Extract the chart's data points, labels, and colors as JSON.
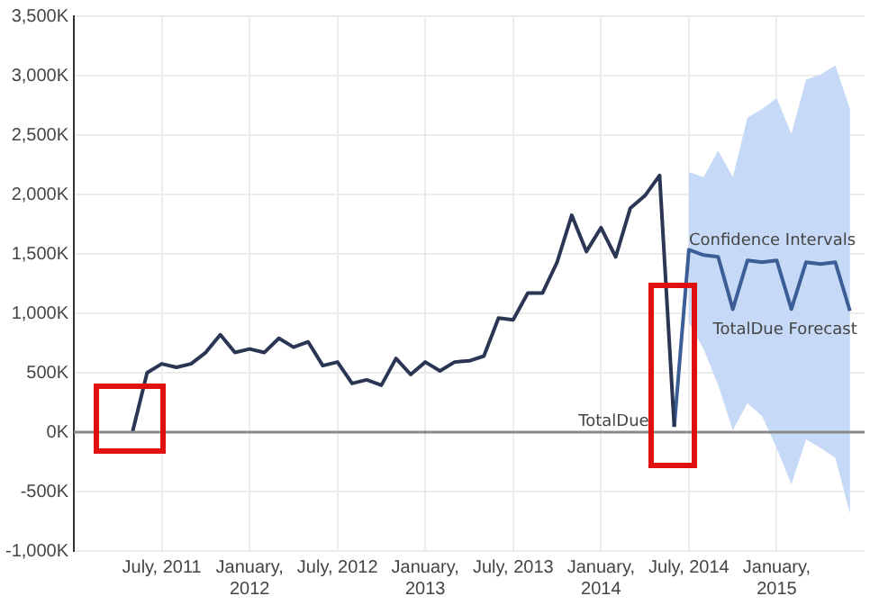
{
  "chart_data": {
    "type": "line",
    "marker": "none",
    "legend": false,
    "grid": true,
    "xlim": [
      "2011-01",
      "2015-07"
    ],
    "xticks": [
      {
        "value": "2011-07",
        "label": "July, 2011"
      },
      {
        "value": "2012-01",
        "label": "January, 2012"
      },
      {
        "value": "2012-07",
        "label": "July, 2012"
      },
      {
        "value": "2013-01",
        "label": "January, 2013"
      },
      {
        "value": "2013-07",
        "label": "July, 2013"
      },
      {
        "value": "2014-01",
        "label": "January, 2014"
      },
      {
        "value": "2014-07",
        "label": "July, 2014"
      },
      {
        "value": "2015-01",
        "label": "January, 2015"
      }
    ],
    "ylim": [
      -1000,
      3500
    ],
    "yticks": [
      {
        "value": -1000,
        "label": "-1,000K"
      },
      {
        "value": -500,
        "label": "-500K"
      },
      {
        "value": 0,
        "label": "0K"
      },
      {
        "value": 500,
        "label": "500K"
      },
      {
        "value": 1000,
        "label": "1,000K"
      },
      {
        "value": 1500,
        "label": "1,500K"
      },
      {
        "value": 2000,
        "label": "2,000K"
      },
      {
        "value": 2500,
        "label": "2,500K"
      },
      {
        "value": 3000,
        "label": "3,000K"
      },
      {
        "value": 3500,
        "label": "3,500K"
      }
    ],
    "ref_lines": [
      {
        "axis": "y",
        "value": 0,
        "color": "#8a8a8a"
      }
    ],
    "annotations": [
      {
        "text": "Confidence Intervals",
        "x": "2014-07",
        "y": 1610
      }
    ],
    "series": [
      {
        "name": "TotalDue",
        "color": "#2b3655",
        "x": [
          "2011-05",
          "2011-06",
          "2011-07",
          "2011-08",
          "2011-09",
          "2011-10",
          "2011-11",
          "2011-12",
          "2012-01",
          "2012-02",
          "2012-03",
          "2012-04",
          "2012-05",
          "2012-06",
          "2012-07",
          "2012-08",
          "2012-09",
          "2012-10",
          "2012-11",
          "2012-12",
          "2013-01",
          "2013-02",
          "2013-03",
          "2013-04",
          "2013-05",
          "2013-06",
          "2013-07",
          "2013-08",
          "2013-09",
          "2013-10",
          "2013-11",
          "2013-12",
          "2014-01",
          "2014-02",
          "2014-03",
          "2014-04",
          "2014-05",
          "2014-06"
        ],
        "values": [
          0,
          500,
          575,
          545,
          575,
          670,
          820,
          670,
          700,
          670,
          790,
          715,
          760,
          560,
          590,
          410,
          440,
          395,
          620,
          485,
          590,
          515,
          590,
          600,
          640,
          960,
          945,
          1170,
          1170,
          1430,
          1825,
          1520,
          1720,
          1475,
          1885,
          1990,
          2160,
          45
        ]
      },
      {
        "name": "TotalDue Forecast",
        "color": "#3c5e96",
        "x": [
          "2014-06",
          "2014-07",
          "2014-08",
          "2014-09",
          "2014-10",
          "2014-11",
          "2014-12",
          "2015-01",
          "2015-02",
          "2015-03",
          "2015-04",
          "2015-05",
          "2015-06"
        ],
        "values": [
          45,
          1535,
          1490,
          1475,
          1035,
          1445,
          1430,
          1445,
          1035,
          1430,
          1415,
          1430,
          1020
        ],
        "lower": [
          null,
          925,
          700,
          395,
          15,
          245,
          135,
          -135,
          -440,
          -60,
          -135,
          -215,
          -685
        ],
        "upper": [
          null,
          2190,
          2145,
          2370,
          2145,
          2645,
          2720,
          2810,
          2510,
          2965,
          3010,
          3085,
          2720
        ]
      }
    ]
  }
}
